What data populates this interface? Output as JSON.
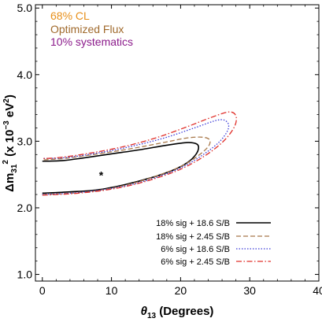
{
  "chart_data": {
    "type": "line",
    "xlabel": "θ13 (Degrees)",
    "xlabel_parts": {
      "symbol": "θ",
      "sub": "13",
      "rest": " (Degrees)"
    },
    "ylabel_parts": {
      "delta": "Δm",
      "sub": "31",
      "sup": "2",
      "mid": " (x 10",
      "exp": "−3",
      "unit": " eV",
      "unit_sup": "2",
      "close": ")"
    },
    "xlim": [
      -1,
      40
    ],
    "ylim": [
      0.9,
      5.05
    ],
    "xticks": [
      0,
      10,
      20,
      30,
      40
    ],
    "yticks": [
      1.0,
      2.0,
      3.0,
      4.0,
      5.0
    ],
    "xtick_labels": [
      "0",
      "10",
      "20",
      "30",
      "40"
    ],
    "ytick_labels": [
      "1.0",
      "2.0",
      "3.0",
      "4.0",
      "5.0"
    ],
    "grid": false,
    "legend_position": "bottom-right",
    "annotations": [
      {
        "text": "68% CL",
        "color": "#e8901a"
      },
      {
        "text": "Optimized Flux",
        "color": "#a06a2c"
      },
      {
        "text": "10% systematics",
        "color": "#8b1a8b"
      }
    ],
    "best_fit": {
      "x": 8.5,
      "y": 2.5,
      "marker": "*"
    },
    "series": [
      {
        "name": "18% sig + 18.6 S/B",
        "color": "#000000",
        "dash": "solid",
        "contour": [
          [
            0,
            2.22
          ],
          [
            4,
            2.24
          ],
          [
            8,
            2.27
          ],
          [
            12,
            2.35
          ],
          [
            16,
            2.46
          ],
          [
            19,
            2.57
          ],
          [
            21,
            2.68
          ],
          [
            22.2,
            2.8
          ],
          [
            22.6,
            2.9
          ],
          [
            22.3,
            2.96
          ],
          [
            21,
            2.98
          ],
          [
            18,
            2.94
          ],
          [
            14,
            2.87
          ],
          [
            10,
            2.81
          ],
          [
            6,
            2.75
          ],
          [
            3,
            2.71
          ],
          [
            0,
            2.7
          ]
        ]
      },
      {
        "name": "18% sig + 2.45 S/B",
        "color": "#a8784a",
        "dash": "dashed",
        "contour": [
          [
            0,
            2.2
          ],
          [
            4,
            2.22
          ],
          [
            8,
            2.26
          ],
          [
            12,
            2.34
          ],
          [
            16,
            2.46
          ],
          [
            20,
            2.62
          ],
          [
            22.5,
            2.78
          ],
          [
            24,
            2.92
          ],
          [
            24.2,
            3.02
          ],
          [
            23.2,
            3.06
          ],
          [
            21,
            3.05
          ],
          [
            18,
            2.99
          ],
          [
            14,
            2.91
          ],
          [
            10,
            2.84
          ],
          [
            6,
            2.78
          ],
          [
            3,
            2.74
          ],
          [
            0,
            2.72
          ]
        ]
      },
      {
        "name": "6% sig + 18.6 S/B",
        "color": "#3a3ad8",
        "dash": "dotted",
        "contour": [
          [
            0,
            2.2
          ],
          [
            4,
            2.22
          ],
          [
            8,
            2.26
          ],
          [
            12,
            2.33
          ],
          [
            16,
            2.44
          ],
          [
            20,
            2.6
          ],
          [
            23,
            2.78
          ],
          [
            25.5,
            2.98
          ],
          [
            26.8,
            3.16
          ],
          [
            26.8,
            3.28
          ],
          [
            25.5,
            3.32
          ],
          [
            22,
            3.2
          ],
          [
            18,
            3.06
          ],
          [
            14,
            2.95
          ],
          [
            10,
            2.86
          ],
          [
            6,
            2.79
          ],
          [
            3,
            2.75
          ],
          [
            0,
            2.74
          ]
        ]
      },
      {
        "name": "6% sig + 2.45 S/B",
        "color": "#e0302a",
        "dash": "dashdot",
        "contour": [
          [
            0,
            2.19
          ],
          [
            4,
            2.21
          ],
          [
            8,
            2.25
          ],
          [
            12,
            2.32
          ],
          [
            16,
            2.43
          ],
          [
            20,
            2.58
          ],
          [
            23.5,
            2.78
          ],
          [
            26.2,
            3.0
          ],
          [
            27.8,
            3.22
          ],
          [
            28,
            3.38
          ],
          [
            27,
            3.44
          ],
          [
            24.5,
            3.36
          ],
          [
            21,
            3.22
          ],
          [
            17,
            3.07
          ],
          [
            13,
            2.95
          ],
          [
            9,
            2.86
          ],
          [
            5,
            2.79
          ],
          [
            2,
            2.75
          ],
          [
            0,
            2.74
          ]
        ]
      }
    ]
  }
}
